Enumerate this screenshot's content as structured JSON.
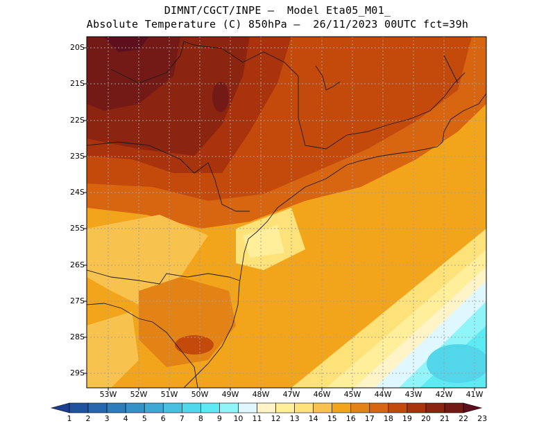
{
  "title_line1": "DIMNT/CGCT/INPE –  Model Eta05_M01_",
  "title_line2": "Absolute Temperature (C) 850hPa –  26/11/2023 00UTC fct=39h",
  "lat_labels": [
    "20S",
    "21S",
    "22S",
    "23S",
    "24S",
    "25S",
    "26S",
    "27S",
    "28S",
    "29S"
  ],
  "lon_labels": [
    "53W",
    "52W",
    "51W",
    "50W",
    "49W",
    "48W",
    "47W",
    "46W",
    "45W",
    "44W",
    "43W",
    "42W",
    "41W"
  ],
  "colorbar": {
    "labels": [
      "1",
      "2",
      "3",
      "4",
      "5",
      "6",
      "7",
      "8",
      "9",
      "10",
      "11",
      "12",
      "13",
      "14",
      "15",
      "16",
      "17",
      "18",
      "19",
      "20",
      "21",
      "22",
      "23"
    ],
    "colors": [
      "#1c3f91",
      "#20539f",
      "#2767ad",
      "#2e7cbb",
      "#3592c8",
      "#3ea8d4",
      "#47bfe0",
      "#52d6ea",
      "#5ceaf3",
      "#8ff5f8",
      "#dff7ff",
      "#fff3c8",
      "#ffee9a",
      "#fde27a",
      "#f8c24e",
      "#f2a41a",
      "#e48315",
      "#d86510",
      "#c44a0c",
      "#a8330c",
      "#8b250f",
      "#731a16",
      "#5e0f1d"
    ]
  }
}
